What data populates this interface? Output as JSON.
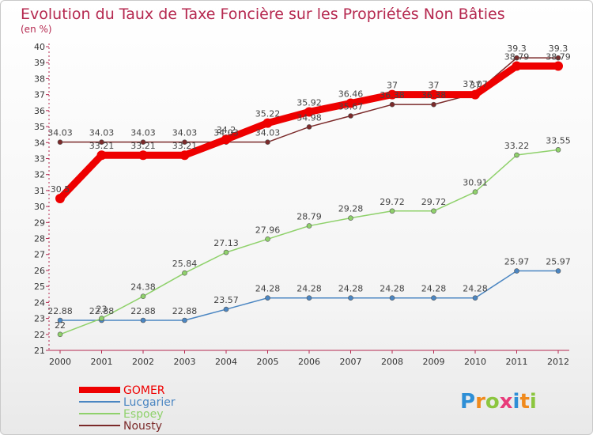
{
  "chart_data": {
    "type": "line",
    "title": "Evolution du Taux de Taxe Foncière sur les Propriétés Non Bâties",
    "subtitle": "(en %)",
    "xlabel": "",
    "ylabel": "(en %)",
    "x": [
      "2000",
      "2001",
      "2002",
      "2003",
      "2004",
      "2005",
      "2006",
      "2007",
      "2008",
      "2009",
      "2010",
      "2011",
      "2012"
    ],
    "ylim": [
      21,
      40
    ],
    "yticks": [
      "21",
      "22",
      "23",
      "24",
      "25",
      "26",
      "27",
      "28",
      "29",
      "30",
      "31",
      "32",
      "33",
      "34",
      "35",
      "36",
      "37",
      "38",
      "39",
      "40"
    ],
    "grid": false,
    "legend_position": "bottom-left",
    "series": [
      {
        "name": "Nousty",
        "color": "#7b2a2a",
        "values": [
          34.03,
          34.03,
          34.03,
          34.03,
          34.03,
          34.03,
          34.98,
          35.67,
          36.38,
          36.38,
          37.07,
          39.3,
          39.3
        ],
        "labels": [
          "34.03",
          "34.03",
          "34.03",
          "34.03",
          "34.03",
          "34.03",
          "34.98",
          "35.67",
          "36.38",
          "36.38",
          "37.07",
          "39.3",
          "39.3"
        ]
      },
      {
        "name": "Lucgarier",
        "color": "#4b86c2",
        "values": [
          22.88,
          22.88,
          22.88,
          22.88,
          23.57,
          24.28,
          24.28,
          24.28,
          24.28,
          24.28,
          24.28,
          25.97,
          25.97
        ],
        "labels": [
          "22.88",
          "22.88",
          "22.88",
          "22.88",
          "23.57",
          "24.28",
          "24.28",
          "24.28",
          "24.28",
          "24.28",
          "24.28",
          "25.97",
          "25.97"
        ]
      },
      {
        "name": "Espoey",
        "color": "#8fd16b",
        "values": [
          22,
          23,
          24.38,
          25.84,
          27.13,
          27.96,
          28.79,
          29.28,
          29.72,
          29.72,
          30.91,
          33.22,
          33.55
        ],
        "labels": [
          "22",
          "23",
          "24.38",
          "25.84",
          "27.13",
          "27.96",
          "28.79",
          "29.28",
          "29.72",
          "29.72",
          "30.91",
          "33.22",
          "33.55"
        ]
      },
      {
        "name": "GOMER",
        "color": "#ee0000",
        "values": [
          30.5,
          33.21,
          33.21,
          33.21,
          34.2,
          35.22,
          35.92,
          36.46,
          37,
          37,
          37,
          38.79,
          38.79
        ],
        "labels": [
          "30.5",
          "33.21",
          "33.21",
          "33.21",
          "34.2",
          "35.22",
          "35.92",
          "36.46",
          "37",
          "37",
          "37",
          "38.79",
          "38.79"
        ]
      }
    ]
  },
  "legend": {
    "items": [
      {
        "name": "GOMER",
        "color": "#ee0000"
      },
      {
        "name": "Lucgarier",
        "color": "#4b86c2"
      },
      {
        "name": "Espoey",
        "color": "#8fd16b"
      },
      {
        "name": "Nousty",
        "color": "#7b2a2a"
      }
    ]
  },
  "colors": {
    "title": "#b5284f",
    "axis": "#b5284f"
  },
  "logo": {
    "text": "Proxiti"
  }
}
